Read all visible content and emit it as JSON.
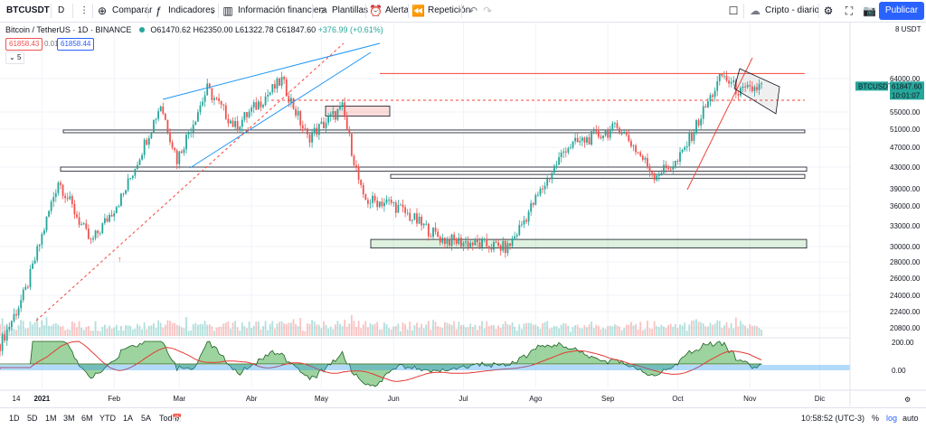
{
  "toolbar": {
    "symbol": "BTCUSDT",
    "interval": "D",
    "compare": "Comparar",
    "indicators": "Indicadores",
    "financials": "Información financiera",
    "templates": "Plantillas",
    "alert": "Alerta",
    "replay": "Repetición",
    "layout_name": "Cripto - diario",
    "publish": "Publicar"
  },
  "legend": {
    "title": "Bitcoin / TetherUS · 1D · BINANCE",
    "open": "O61470.62",
    "high": "H62350.00",
    "low": "L61322.78",
    "close": "C61847.60",
    "change": "+376.99 (+0.61%)",
    "bid": "61858.43",
    "spread": "0.01",
    "ask": "61858.44",
    "indicator_count": "5"
  },
  "price_axis": {
    "currency": "USDT",
    "labels": [
      "8",
      "64000.00",
      "55000.00",
      "51000.00",
      "47000.00",
      "43000.00",
      "39000.00",
      "36000.00",
      "33000.00",
      "30000.00",
      "28000.00",
      "26000.00",
      "24000.00",
      "22400.00",
      "20800.00"
    ],
    "last_price_symbol": "BTCUSDT",
    "last_price": "61847.60",
    "countdown": "10:01:07",
    "osc_labels": [
      "200.00",
      "0.00"
    ]
  },
  "time_axis": {
    "labels": [
      "14",
      "2021",
      "Feb",
      "Mar",
      "Abr",
      "May",
      "Jun",
      "Jul",
      "Ago",
      "Sep",
      "Oct",
      "Nov",
      "Dic"
    ]
  },
  "bottom": {
    "ranges": [
      "1D",
      "5D",
      "1M",
      "3M",
      "6M",
      "YTD",
      "1A",
      "5A",
      "Todos"
    ],
    "clock": "10:58:52 (UTC-3)",
    "percent": "%",
    "log": "log",
    "auto": "auto"
  },
  "colors": {
    "up": "#26a69a",
    "down": "#ef5350",
    "accent": "#2962ff",
    "trendline": "#2196f3",
    "resistance": "#f44336"
  },
  "chart_data": {
    "type": "candlestick",
    "title": "Bitcoin / TetherUS · 1D · BINANCE",
    "x_range": [
      "2020-12-14",
      "2021-11-06"
    ],
    "y_range": [
      20000,
      68000
    ],
    "close_path": [
      [
        "2020-12-14",
        19300
      ],
      [
        "2020-12-25",
        24500
      ],
      [
        "2021-01-08",
        40500
      ],
      [
        "2021-01-22",
        30500
      ],
      [
        "2021-02-05",
        38000
      ],
      [
        "2021-02-21",
        57000
      ],
      [
        "2021-02-28",
        44500
      ],
      [
        "2021-03-13",
        61000
      ],
      [
        "2021-03-25",
        51500
      ],
      [
        "2021-04-14",
        63500
      ],
      [
        "2021-04-25",
        49000
      ],
      [
        "2021-05-10",
        56000
      ],
      [
        "2021-05-19",
        37000
      ],
      [
        "2021-05-31",
        36500
      ],
      [
        "2021-06-22",
        31000
      ],
      [
        "2021-07-20",
        29800
      ],
      [
        "2021-08-14",
        47000
      ],
      [
        "2021-09-06",
        51500
      ],
      [
        "2021-09-21",
        41500
      ],
      [
        "2021-10-01",
        44000
      ],
      [
        "2021-10-20",
        65000
      ],
      [
        "2021-10-28",
        60000
      ],
      [
        "2021-11-06",
        61847.6
      ]
    ],
    "zones": [
      {
        "from": 54000,
        "to": 56500,
        "color": "red"
      },
      {
        "from": 50200,
        "to": 50800,
        "color": "white"
      },
      {
        "from": 42200,
        "to": 43000,
        "color": "white"
      },
      {
        "from": 40900,
        "to": 41600,
        "color": "white"
      },
      {
        "from": 29800,
        "to": 31000,
        "color": "green"
      }
    ],
    "horizontal_lines": [
      {
        "price": 65500,
        "style": "solid",
        "color": "red"
      },
      {
        "price": 58000,
        "style": "dashed",
        "color": "red"
      }
    ],
    "grid": true
  }
}
